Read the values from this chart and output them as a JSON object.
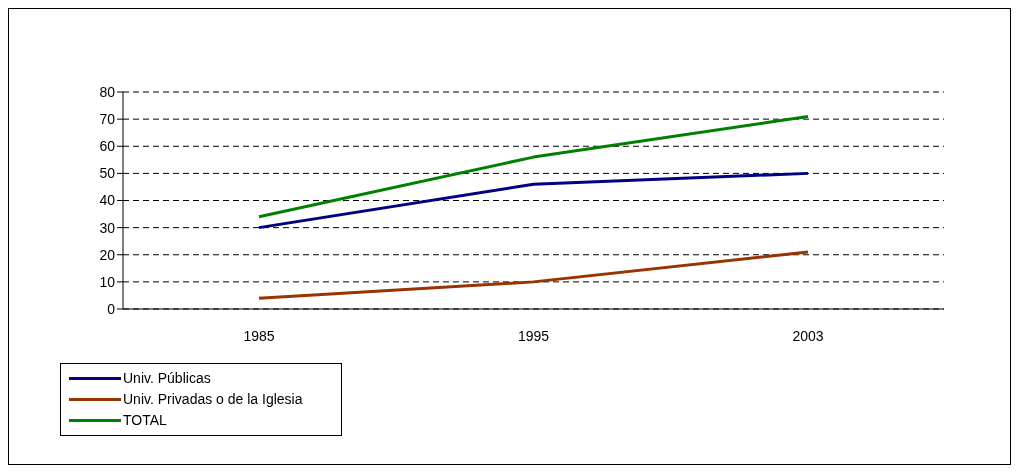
{
  "chart_data": {
    "type": "line",
    "categories": [
      "1985",
      "1995",
      "2003"
    ],
    "series": [
      {
        "name": "Univ. Públicas",
        "color": "#000080",
        "values": [
          30,
          46,
          50
        ]
      },
      {
        "name": "Univ. Privadas o de la Iglesia",
        "color": "#993300",
        "values": [
          4,
          10,
          21
        ]
      },
      {
        "name": "TOTAL",
        "color": "#008000",
        "values": [
          34,
          56,
          71
        ]
      }
    ],
    "ylim": [
      0,
      80
    ],
    "yticks": [
      0,
      10,
      20,
      30,
      40,
      50,
      60,
      70,
      80
    ],
    "grid": "y",
    "legend": "bottom left",
    "marker": "none",
    "line_style": "solid"
  }
}
